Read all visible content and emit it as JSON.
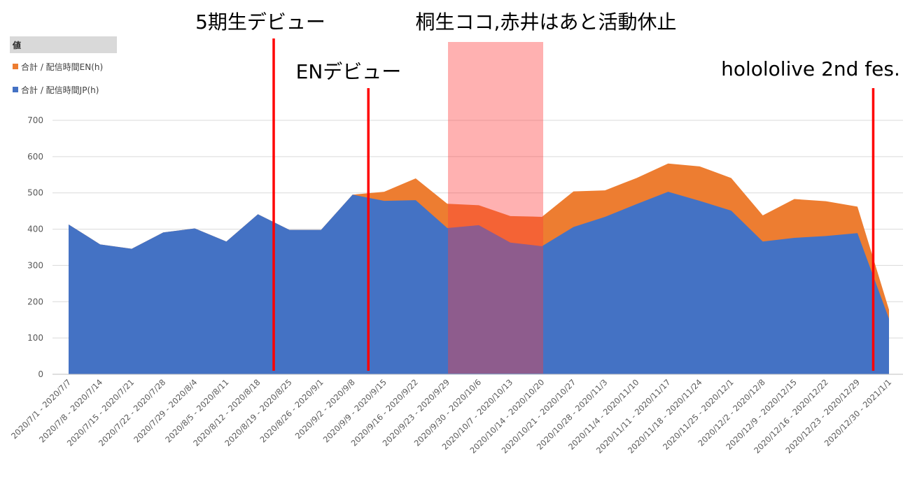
{
  "chart_data": {
    "type": "area",
    "stacked": true,
    "title": "",
    "xlabel": "",
    "ylabel": "",
    "ylim": [
      0,
      700
    ],
    "yticks": [
      0,
      100,
      200,
      300,
      400,
      500,
      600,
      700
    ],
    "grid": true,
    "legend": {
      "header": "値",
      "position": "top-left",
      "entries": [
        "合計 / 配信時間EN(h)",
        "合計 / 配信時間JP(h)"
      ]
    },
    "categories": [
      "2020/7/1 - 2020/7/7",
      "2020/7/8 - 2020/7/14",
      "2020/7/15 - 2020/7/21",
      "2020/7/22 - 2020/7/28",
      "2020/7/29 - 2020/8/4",
      "2020/8/5 - 2020/8/11",
      "2020/8/12 - 2020/8/18",
      "2020/8/19 - 2020/8/25",
      "2020/8/26 - 2020/9/1",
      "2020/9/2 - 2020/9/8",
      "2020/9/9 - 2020/9/15",
      "2020/9/16 - 2020/9/22",
      "2020/9/23 - 2020/9/29",
      "2020/9/30 - 2020/10/6",
      "2020/10/7 - 2020/10/13",
      "2020/10/14 - 2020/10/20",
      "2020/10/21 - 2020/10/27",
      "2020/10/28 - 2020/11/3",
      "2020/11/4 - 2020/11/10",
      "2020/11/11 - 2020/11/17",
      "2020/11/18 - 2020/11/24",
      "2020/11/25 - 2020/12/1",
      "2020/12/2 - 2020/12/8",
      "2020/12/9 - 2020/12/15",
      "2020/12/16 - 2020/12/22",
      "2020/12/23 - 2020/12/29",
      "2020/12/30 - 2021/1/1"
    ],
    "series": [
      {
        "name": "合計 / 配信時間JP(h)",
        "color": "#4472c4",
        "values": [
          413,
          358,
          346,
          391,
          402,
          366,
          441,
          398,
          398,
          495,
          478,
          480,
          403,
          411,
          363,
          353,
          406,
          434,
          469,
          503,
          478,
          451,
          366,
          376,
          381,
          389,
          153
        ]
      },
      {
        "name": "合計 / 配信時間EN(h)",
        "color": "#ed7d31",
        "values": [
          0,
          0,
          0,
          0,
          0,
          0,
          0,
          0,
          0,
          0,
          25,
          60,
          67,
          55,
          73,
          81,
          98,
          73,
          72,
          78,
          95,
          90,
          72,
          107,
          96,
          73,
          25
        ]
      }
    ],
    "annotations": [
      {
        "label": "5期生デビュー",
        "type": "vline",
        "after_category": 6
      },
      {
        "label": "ENデビュー",
        "type": "vline",
        "after_category": 9
      },
      {
        "label": "holololive 2nd fes.",
        "type": "vline",
        "after_category": 25
      },
      {
        "label": "桐生ココ,赤井はあと活動休止",
        "type": "band",
        "from_category": 13,
        "to_category": 15
      }
    ]
  }
}
